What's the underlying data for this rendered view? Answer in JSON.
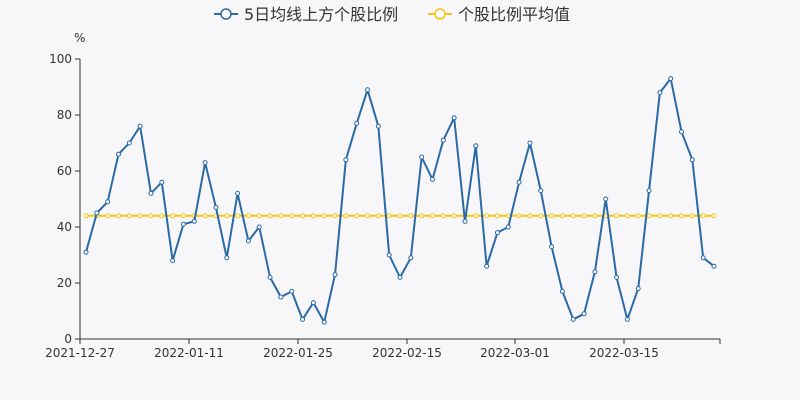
{
  "chart_data": {
    "type": "line",
    "ylabel": "%",
    "ylim": [
      0,
      100
    ],
    "yticks": [
      0,
      20,
      40,
      60,
      80,
      100
    ],
    "x_tick_labels": [
      "2021-12-27",
      "2022-01-11",
      "2022-01-25",
      "2022-02-15",
      "2022-03-01",
      "2022-03-15"
    ],
    "x_tick_indices": [
      0,
      10,
      20,
      30,
      40,
      50
    ],
    "legend_position": "top-center",
    "grid": false,
    "series": [
      {
        "name": "5日均线上方个股比例",
        "color": "#2b6aa6",
        "marker": "hollow-circle",
        "values": [
          31,
          45,
          49,
          66,
          70,
          76,
          52,
          56,
          28,
          41,
          42,
          63,
          47,
          29,
          52,
          35,
          40,
          22,
          15,
          17,
          7,
          13,
          6,
          23,
          64,
          77,
          89,
          76,
          30,
          22,
          29,
          65,
          57,
          71,
          79,
          42,
          69,
          26,
          38,
          40,
          56,
          70,
          53,
          33,
          17,
          7,
          9,
          24,
          50,
          22,
          7,
          18,
          53,
          88,
          93,
          74,
          64,
          29,
          26
        ]
      },
      {
        "name": "个股比例平均值",
        "color": "#f5c518",
        "marker": "hollow-circle",
        "constant": 44
      }
    ]
  }
}
